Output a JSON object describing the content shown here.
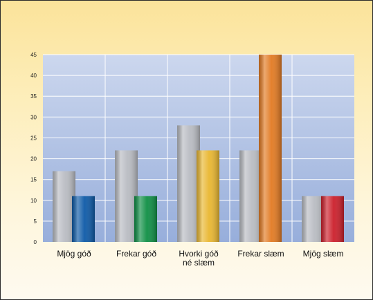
{
  "chart_data": {
    "type": "bar",
    "categories": [
      "Mjög góð",
      "Frekar góð",
      "Hvorki góð né slæm",
      "Frekar slæm",
      "Mjög slæm"
    ],
    "category_lines": [
      [
        "Mjög góð"
      ],
      [
        "Frekar góð"
      ],
      [
        "Hvorki góð",
        "né slæm"
      ],
      [
        "Frekar slæm"
      ],
      [
        "Mjög slæm"
      ]
    ],
    "series": [
      {
        "values": [
          17,
          22,
          28,
          22,
          11
        ],
        "color": "#b9bcc2"
      },
      {
        "values": [
          11,
          11,
          22,
          45,
          11
        ],
        "colors": [
          "#0d5aa7",
          "#0f8f45",
          "#e9b730",
          "#e27a22",
          "#cc1f2b"
        ]
      }
    ],
    "ylim": [
      0,
      45
    ],
    "yticks": [
      0,
      5,
      10,
      15,
      20,
      25,
      30,
      35,
      40,
      45
    ],
    "grid": true,
    "colors": {
      "plot_bg_top": "#ccd7ee",
      "plot_bg_bottom": "#97aedb",
      "grid": "#ffffff"
    }
  }
}
